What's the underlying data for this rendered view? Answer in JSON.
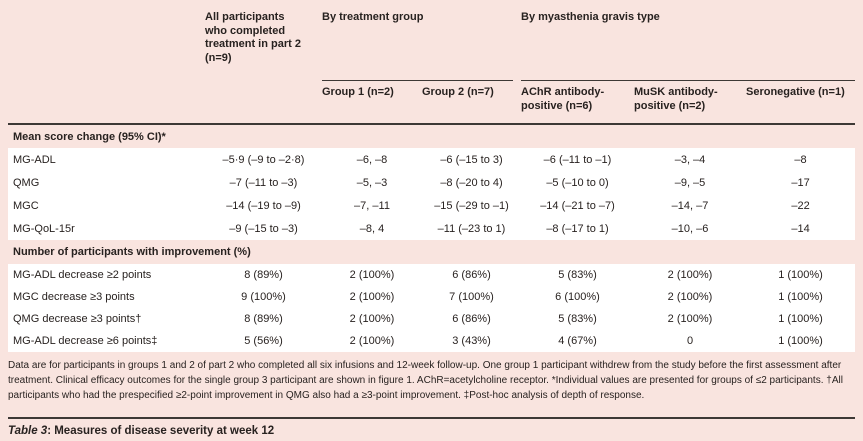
{
  "colors": {
    "page_bg": "#f9e4df",
    "row_bg": "#ffffff",
    "text": "#282220",
    "rule": "#3d3835"
  },
  "table": {
    "col_headers": {
      "all_participants": "All participants who completed treatment in part 2 (n=9)",
      "treatment_group_label": "By treatment group",
      "treatment_group_cols": [
        "Group 1 (n=2)",
        "Group 2 (n=7)"
      ],
      "mg_type_label": "By myasthenia gravis type",
      "mg_type_cols": [
        "AChR antibody-positive (n=6)",
        "MuSK antibody-positive (n=2)",
        "Seronegative (n=1)"
      ]
    },
    "sections": [
      {
        "title": "Mean score change (95% CI)*",
        "rows": [
          {
            "label": "MG-ADL",
            "values": [
              "–5·9 (–9 to –2·8)",
              "–6, –8",
              "–6 (–15 to 3)",
              "–6 (–11 to –1)",
              "–3, –4",
              "–8"
            ]
          },
          {
            "label": "QMG",
            "values": [
              "–7 (–11 to –3)",
              "–5, –3",
              "–8 (–20 to 4)",
              "–5 (–10 to 0)",
              "–9, –5",
              "–17"
            ]
          },
          {
            "label": "MGC",
            "values": [
              "–14 (–19 to –9)",
              "–7, –11",
              "–15 (–29 to –1)",
              "–14 (–21 to –7)",
              "–14, –7",
              "–22"
            ]
          },
          {
            "label": "MG-QoL-15r",
            "values": [
              "–9 (–15 to –3)",
              "–8, 4",
              "–11 (–23 to 1)",
              "–8 (–17 to 1)",
              "–10, –6",
              "–14"
            ]
          }
        ]
      },
      {
        "title": "Number of participants with improvement (%)",
        "rows": [
          {
            "label": "MG-ADL decrease ≥2 points",
            "values": [
              "8 (89%)",
              "2 (100%)",
              "6 (86%)",
              "5 (83%)",
              "2 (100%)",
              "1 (100%)"
            ]
          },
          {
            "label": "MGC decrease ≥3 points",
            "values": [
              "9 (100%)",
              "2 (100%)",
              "7 (100%)",
              "6 (100%)",
              "2 (100%)",
              "1 (100%)"
            ]
          },
          {
            "label": "QMG decrease ≥3 points†",
            "values": [
              "8 (89%)",
              "2 (100%)",
              "6 (86%)",
              "5 (83%)",
              "2 (100%)",
              "1 (100%)"
            ]
          },
          {
            "label": "MG-ADL decrease ≥6 points‡",
            "values": [
              "5 (56%)",
              "2 (100%)",
              "3 (43%)",
              "4 (67%)",
              "0",
              "1 (100%)"
            ]
          }
        ]
      }
    ],
    "footnote": "Data are for participants in groups 1 and 2 of part 2 who completed all six infusions and 12-week follow-up. One group 1 participant withdrew from the study before the first assessment after treatment. Clinical efficacy outcomes for the single group 3 participant are shown in figure 1. AChR=acetylcholine receptor. *Individual values are presented for groups of ≤2 participants. †All participants who had the prespecified ≥2-point improvement in QMG also had a ≥3-point improvement. ‡Post-hoc analysis of depth of response.",
    "caption": {
      "prefix": "Table 3",
      "rest": ": Measures of disease severity at week 12"
    }
  }
}
